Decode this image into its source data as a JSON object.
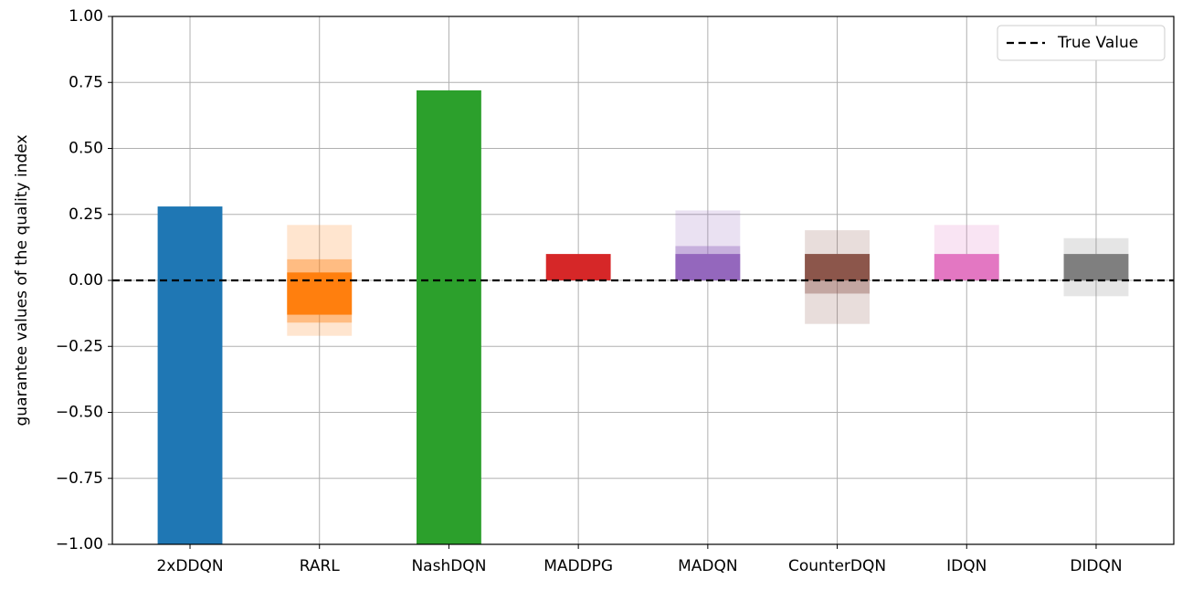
{
  "chart_data": {
    "type": "range-bar",
    "ylabel": "guarantee values of the quality index",
    "categories": [
      "2xDDQN",
      "RARL",
      "NashDQN",
      "MADDPG",
      "MADQN",
      "CounterDQN",
      "IDQN",
      "DIDQN"
    ],
    "bars": [
      {
        "color": "#1f77b4",
        "layers": [
          {
            "range": [
              -1,
              0.28
            ],
            "opacity": 1
          }
        ]
      },
      {
        "color": "#ff7f0e",
        "layers": [
          {
            "range": [
              -0.21,
              0.21
            ],
            "opacity": 0.2
          },
          {
            "range": [
              -0.16,
              0.08
            ],
            "opacity": 0.4
          },
          {
            "range": [
              -0.13,
              0.03
            ],
            "opacity": 1
          }
        ]
      },
      {
        "color": "#2ca02c",
        "layers": [
          {
            "range": [
              -1,
              0.72
            ],
            "opacity": 1
          }
        ]
      },
      {
        "color": "#d62728",
        "layers": [
          {
            "range": [
              0,
              0.1
            ],
            "opacity": 1
          }
        ]
      },
      {
        "color": "#9467bd",
        "layers": [
          {
            "range": [
              0,
              0.265
            ],
            "opacity": 0.2
          },
          {
            "range": [
              0,
              0.13
            ],
            "opacity": 0.4
          },
          {
            "range": [
              0,
              0.1
            ],
            "opacity": 1
          }
        ]
      },
      {
        "color": "#8c564b",
        "layers": [
          {
            "range": [
              -0.165,
              0.19
            ],
            "opacity": 0.2
          },
          {
            "range": [
              -0.05,
              0.1
            ],
            "opacity": 0.4
          },
          {
            "range": [
              0,
              0.1
            ],
            "opacity": 1
          }
        ]
      },
      {
        "color": "#e377c2",
        "layers": [
          {
            "range": [
              0,
              0.21
            ],
            "opacity": 0.2
          },
          {
            "range": [
              0,
              0.1
            ],
            "opacity": 1
          }
        ]
      },
      {
        "color": "#7f7f7f",
        "layers": [
          {
            "range": [
              -0.06,
              0.16
            ],
            "opacity": 0.2
          },
          {
            "range": [
              0,
              0.1
            ],
            "opacity": 1
          }
        ]
      }
    ],
    "reference_line": {
      "name": "True Value",
      "value": 0,
      "color": "#000000"
    },
    "ylim": [
      -1,
      1
    ],
    "yticks": [
      {
        "value": -1,
        "label": "−1.00"
      },
      {
        "value": -0.75,
        "label": "−0.75"
      },
      {
        "value": -0.5,
        "label": "−0.50"
      },
      {
        "value": -0.25,
        "label": "−0.25"
      },
      {
        "value": 0,
        "label": "0.00"
      },
      {
        "value": 0.25,
        "label": "0.25"
      },
      {
        "value": 0.5,
        "label": "0.50"
      },
      {
        "value": 0.75,
        "label": "0.75"
      },
      {
        "value": 1,
        "label": "1.00"
      }
    ],
    "grid": true,
    "legend": "upper right"
  }
}
